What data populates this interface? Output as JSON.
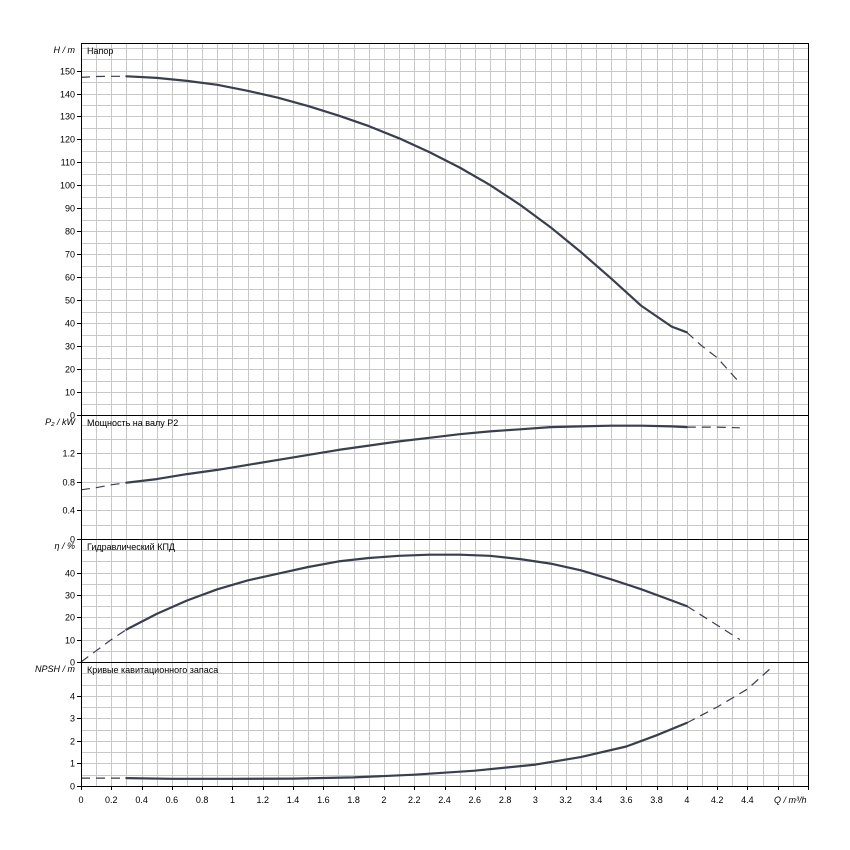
{
  "chart_data": {
    "type": "line",
    "x_axis": {
      "label": "Q / m³/h",
      "range": [
        0,
        4.8
      ],
      "grid_step": 0.1,
      "ticks": [
        0,
        0.2,
        0.4,
        0.6,
        0.8,
        1,
        1.2,
        1.4,
        1.6,
        1.8,
        2,
        2.2,
        2.4,
        2.6,
        2.8,
        3,
        3.2,
        3.4,
        3.6,
        3.8,
        4,
        4.2,
        4.4,
        4.6,
        4.8
      ],
      "tick_labels": [
        "0",
        "0.2",
        "0.4",
        "0.6",
        "0.8",
        "1",
        "1.2",
        "1.4",
        "1.6",
        "1.8",
        "2",
        "2.2",
        "2.4",
        "2.6",
        "2.8",
        "3",
        "3.2",
        "3.4",
        "3.6",
        "3.8",
        "4",
        "4.2",
        "4.4",
        "Q / m³/h"
      ]
    },
    "grid": true,
    "panels": [
      {
        "id": "head",
        "title": "Напор",
        "ylabel": "H / m",
        "ylim": [
          0,
          162
        ],
        "ytick_values": [
          0,
          10,
          20,
          30,
          40,
          50,
          60,
          70,
          80,
          90,
          100,
          110,
          120,
          130,
          140,
          150
        ],
        "ytick_labels": [
          "0",
          "10",
          "20",
          "30",
          "40",
          "50",
          "60",
          "70",
          "80",
          "90",
          "100",
          "110",
          "120",
          "130",
          "140",
          "150"
        ],
        "minor_step": 5,
        "series_solid": {
          "x": [
            0.3,
            0.5,
            0.7,
            0.9,
            1.1,
            1.3,
            1.5,
            1.7,
            1.9,
            2.1,
            2.3,
            2.5,
            2.7,
            2.9,
            3.1,
            3.3,
            3.5,
            3.7,
            3.9,
            4.0
          ],
          "y": [
            147.5,
            146.8,
            145.5,
            143.8,
            141.2,
            138.2,
            134.5,
            130.4,
            125.8,
            120.5,
            114.5,
            107.8,
            100.2,
            91.5,
            81.8,
            71.0,
            59.5,
            47.5,
            38.5,
            36
          ]
        },
        "series_dashed_left": {
          "x": [
            0,
            0.1,
            0.2,
            0.3
          ],
          "y": [
            147,
            147.4,
            147.5,
            147.5
          ]
        },
        "series_dashed_right": {
          "x": [
            4.0,
            4.1,
            4.2,
            4.35
          ],
          "y": [
            36,
            30,
            25,
            14
          ]
        }
      },
      {
        "id": "power",
        "title": "Мощность на валу P2",
        "ylabel": "P₂ / kW",
        "ylim": [
          0,
          1.74
        ],
        "ytick_values": [
          0,
          0.4,
          0.8,
          1.2
        ],
        "ytick_labels": [
          "0",
          "0.4",
          "0.8",
          "1.2"
        ],
        "minor_step": 0.2,
        "series_solid": {
          "x": [
            0.3,
            0.5,
            0.7,
            0.9,
            1.1,
            1.3,
            1.5,
            1.7,
            1.9,
            2.1,
            2.3,
            2.5,
            2.7,
            2.9,
            3.1,
            3.3,
            3.5,
            3.7,
            3.9,
            4.0
          ],
          "y": [
            0.79,
            0.84,
            0.91,
            0.97,
            1.04,
            1.11,
            1.18,
            1.25,
            1.31,
            1.37,
            1.42,
            1.47,
            1.51,
            1.54,
            1.57,
            1.58,
            1.59,
            1.59,
            1.58,
            1.57
          ]
        },
        "series_dashed_left": {
          "x": [
            0,
            0.1,
            0.2,
            0.3
          ],
          "y": [
            0.69,
            0.72,
            0.76,
            0.79
          ]
        },
        "series_dashed_right": {
          "x": [
            4.0,
            4.2,
            4.35
          ],
          "y": [
            1.57,
            1.57,
            1.56
          ]
        }
      },
      {
        "id": "efficiency",
        "title": "Гидравлический КПД",
        "ylabel": "η / %",
        "ylim": [
          0,
          55
        ],
        "ytick_values": [
          0,
          10,
          20,
          30,
          40
        ],
        "ytick_labels": [
          "0",
          "10",
          "20",
          "30",
          "40"
        ],
        "minor_step": 5,
        "series_solid": {
          "x": [
            0.3,
            0.5,
            0.7,
            0.9,
            1.1,
            1.3,
            1.5,
            1.7,
            1.9,
            2.1,
            2.3,
            2.5,
            2.7,
            2.9,
            3.1,
            3.3,
            3.5,
            3.7,
            3.9,
            4.0
          ],
          "y": [
            14.5,
            21.5,
            27.5,
            32.5,
            36.5,
            39.5,
            42.5,
            45,
            46.5,
            47.5,
            48,
            48,
            47.5,
            46,
            44,
            41,
            37,
            32.5,
            27.5,
            25
          ]
        },
        "series_dashed_left": {
          "x": [
            0,
            0.1,
            0.2,
            0.3
          ],
          "y": [
            0,
            5,
            10,
            14.5
          ]
        },
        "series_dashed_right": {
          "x": [
            4.0,
            4.2,
            4.35
          ],
          "y": [
            25,
            16.5,
            10
          ]
        }
      },
      {
        "id": "npsh",
        "title": "Кривые кавитационного запаса",
        "ylabel": "NPSH / m",
        "ylim": [
          0,
          5.5
        ],
        "ytick_values": [
          0,
          1,
          2,
          3,
          4
        ],
        "ytick_labels": [
          "0",
          "1",
          "2",
          "3",
          "4"
        ],
        "minor_step": 0.5,
        "series_solid": {
          "x": [
            0.3,
            0.6,
            1.0,
            1.4,
            1.8,
            2.2,
            2.6,
            3.0,
            3.3,
            3.6,
            3.8,
            4.0
          ],
          "y": [
            0.35,
            0.32,
            0.32,
            0.33,
            0.38,
            0.5,
            0.68,
            0.95,
            1.28,
            1.75,
            2.25,
            2.8
          ]
        },
        "series_dashed_left": {
          "x": [
            0,
            0.3
          ],
          "y": [
            0.35,
            0.35
          ]
        },
        "series_dashed_right": {
          "x": [
            4.0,
            4.2,
            4.4,
            4.55
          ],
          "y": [
            2.8,
            3.5,
            4.3,
            5.2
          ]
        }
      }
    ]
  }
}
